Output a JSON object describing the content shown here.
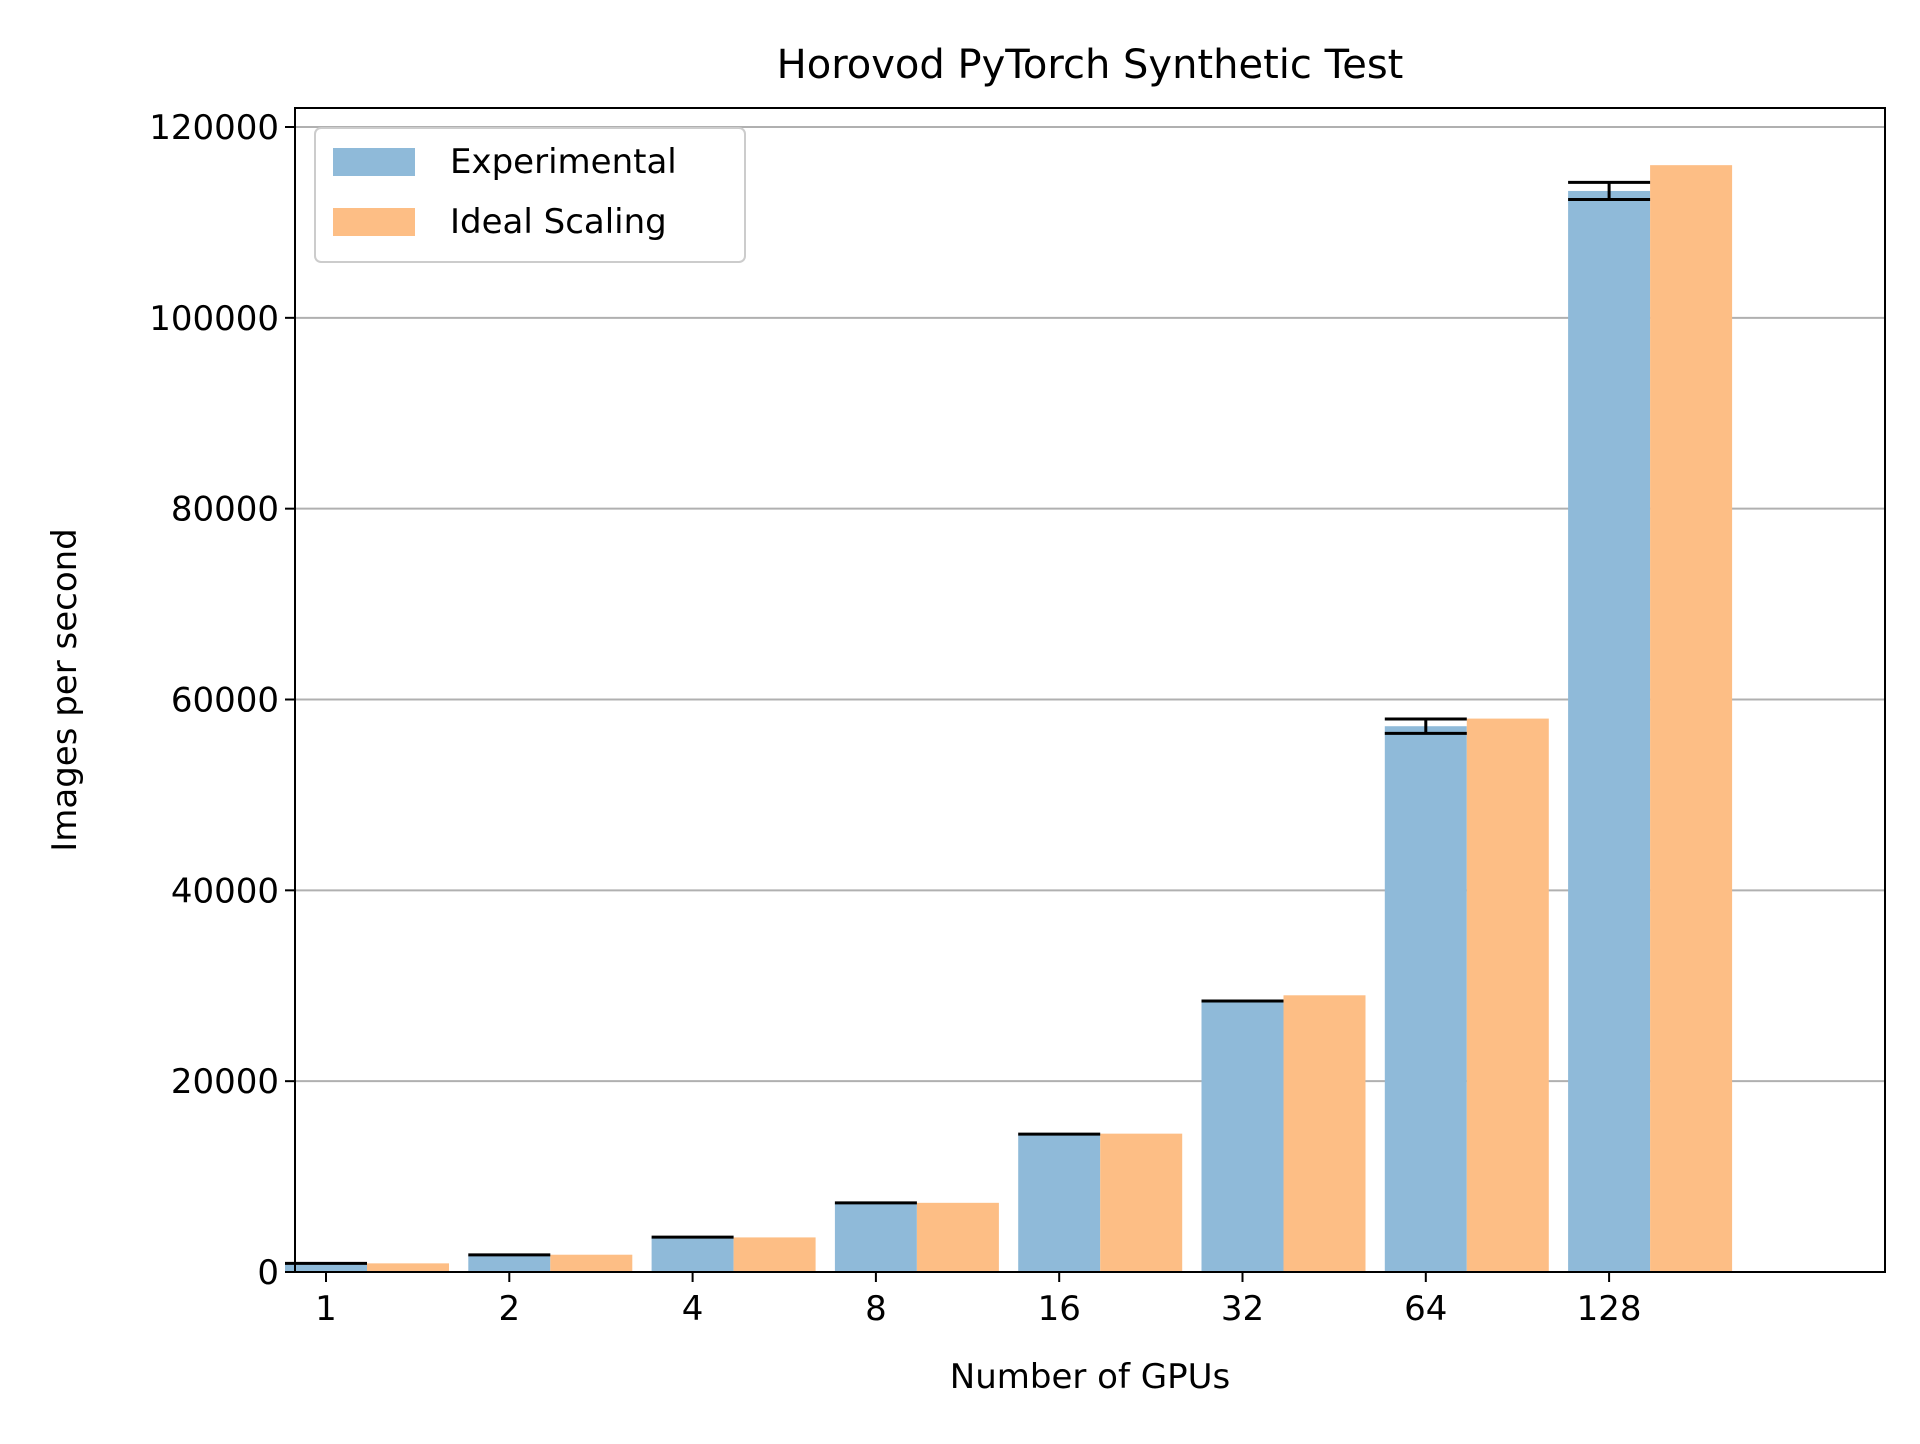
{
  "chart_data": {
    "type": "bar",
    "title": "Horovod PyTorch Synthetic Test",
    "xlabel": "Number of GPUs",
    "ylabel": "Images per second",
    "categories": [
      "1",
      "2",
      "4",
      "8",
      "16",
      "32",
      "64",
      "128"
    ],
    "series": [
      {
        "name": "Experimental",
        "color": "#8fbad9",
        "values": [
          900,
          1800,
          3650,
          7250,
          14450,
          28400,
          57200,
          113300
        ],
        "error": [
          0,
          0,
          0,
          0,
          0,
          0,
          750,
          900
        ]
      },
      {
        "name": "Ideal Scaling",
        "color": "#fdbe85",
        "values": [
          906,
          1812,
          3625,
          7250,
          14500,
          29000,
          58000,
          116000
        ]
      }
    ],
    "ylim": [
      0,
      120000
    ],
    "yticks": [
      0,
      20000,
      40000,
      60000,
      80000,
      100000,
      120000
    ],
    "grid": "horizontal",
    "legend_position": "upper left"
  }
}
